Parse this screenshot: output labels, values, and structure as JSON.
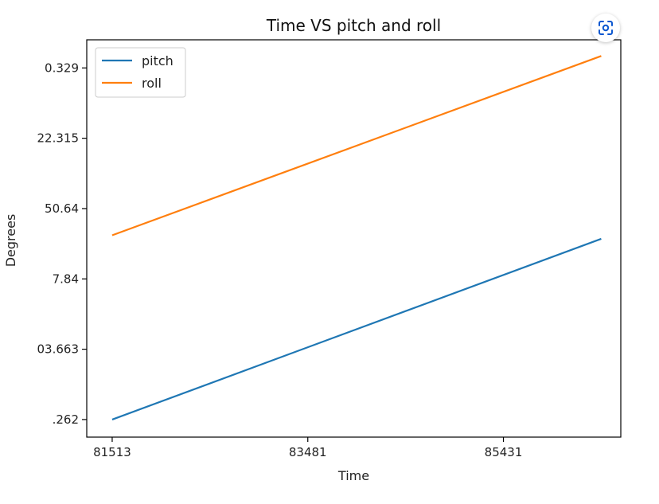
{
  "chart_data": {
    "type": "line",
    "title": "Time VS pitch and roll",
    "xlabel": "Time",
    "ylabel": "Degrees",
    "x_ticks": [
      {
        "value": 0,
        "label": "81513"
      },
      {
        "value": 1,
        "label": "83481"
      },
      {
        "value": 2,
        "label": "85431"
      }
    ],
    "y_ticks": [
      {
        "value": 0,
        "label": ".262"
      },
      {
        "value": 1,
        "label": "03.663"
      },
      {
        "value": 2,
        "label": "7.84"
      },
      {
        "value": 3,
        "label": "50.64"
      },
      {
        "value": 4,
        "label": "22.315"
      },
      {
        "value": 5,
        "label": "0.329"
      }
    ],
    "xlim": [
      -0.13,
      2.6
    ],
    "ylim": [
      -0.25,
      5.4
    ],
    "x": [
      0,
      2.5
    ],
    "series": [
      {
        "name": "pitch",
        "color": "#1f77b4",
        "values": [
          0,
          2.57
        ]
      },
      {
        "name": "roll",
        "color": "#ff7f0e",
        "values": [
          2.62,
          5.17
        ]
      }
    ],
    "legend_position": "top-left",
    "grid": false
  },
  "icons": {
    "lens": "lens-scan-icon"
  }
}
